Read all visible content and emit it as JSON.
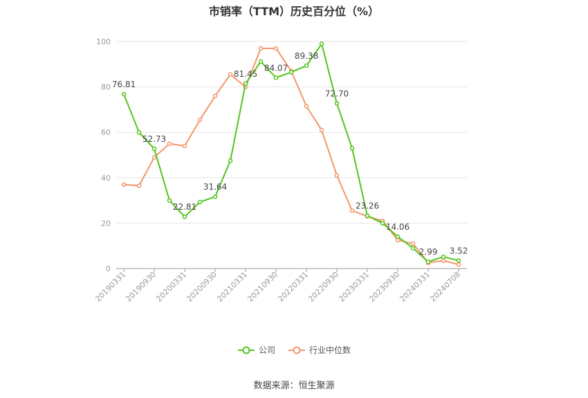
{
  "chart_data": {
    "type": "line",
    "title": "市销率（TTM）历史百分位（%）",
    "xlabel": "",
    "ylabel": "",
    "ylim": [
      0,
      100
    ],
    "yticks": [
      0,
      20,
      40,
      60,
      80,
      100
    ],
    "grid": true,
    "legend_position": "bottom",
    "x_tick_labels": [
      "20190331",
      "20190930",
      "20200331",
      "20200930",
      "20210331",
      "20210930",
      "20220331",
      "20220930",
      "20230331",
      "20230930",
      "20240331",
      "20240708"
    ],
    "series": [
      {
        "name": "公司",
        "color": "#52c41a",
        "values": [
          76.81,
          60.0,
          52.73,
          30.0,
          22.81,
          29.3,
          31.64,
          47.5,
          81.45,
          91.2,
          84.07,
          86.5,
          89.38,
          99.0,
          72.7,
          53.0,
          23.26,
          20.0,
          14.06,
          9.0,
          2.99,
          5.2,
          3.52
        ]
      },
      {
        "name": "行业中位数",
        "color": "#f4956a",
        "values": [
          37.0,
          36.5,
          49.0,
          55.0,
          54.0,
          65.5,
          76.0,
          85.5,
          80.0,
          97.0,
          97.0,
          87.0,
          71.5,
          61.0,
          41.0,
          25.5,
          23.0,
          21.0,
          12.5,
          11.0,
          2.5,
          3.5,
          1.8
        ]
      }
    ],
    "data_labels": [
      {
        "index": 0,
        "text": "76.81"
      },
      {
        "index": 2,
        "text": "52.73"
      },
      {
        "index": 4,
        "text": "22.81"
      },
      {
        "index": 6,
        "text": "31.64"
      },
      {
        "index": 8,
        "text": "81.45"
      },
      {
        "index": 10,
        "text": "84.07"
      },
      {
        "index": 12,
        "text": "89.38"
      },
      {
        "index": 14,
        "text": "72.70"
      },
      {
        "index": 16,
        "text": "23.26"
      },
      {
        "index": 18,
        "text": "14.06"
      },
      {
        "index": 20,
        "text": "2.99"
      },
      {
        "index": 22,
        "text": "3.52"
      }
    ]
  },
  "legend": {
    "items": [
      "公司",
      "行业中位数"
    ]
  },
  "source": "数据来源：恒生聚源"
}
